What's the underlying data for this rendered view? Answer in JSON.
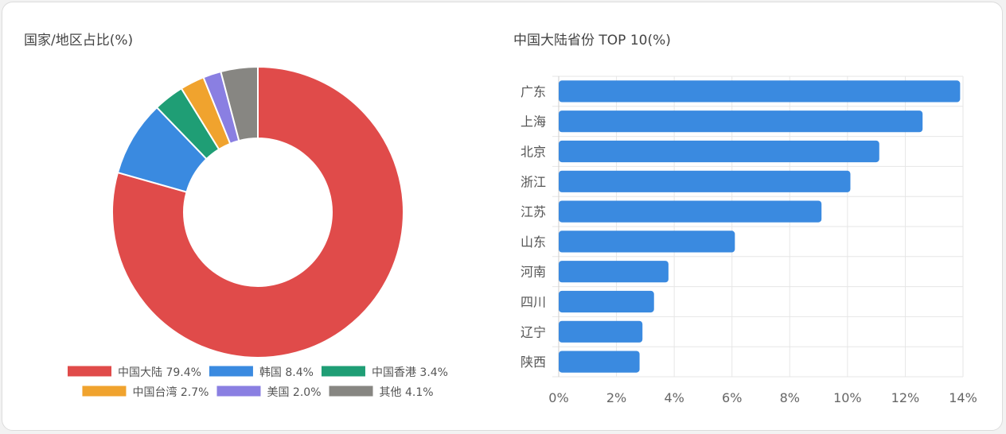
{
  "charts": {
    "left_title": "国家/地区占比(%)",
    "right_title": "中国大陆省份 TOP 10(%)"
  },
  "chart_data": [
    {
      "type": "pie",
      "variant": "donut",
      "title": "国家/地区占比(%)",
      "slices": [
        {
          "label": "中国大陆",
          "value": 79.4,
          "color": "#e04b4a",
          "legend": "中国大陆 79.4%"
        },
        {
          "label": "韩国",
          "value": 8.4,
          "color": "#3a8ae0",
          "legend": "韩国 8.4%"
        },
        {
          "label": "中国香港",
          "value": 3.4,
          "color": "#1f9e75",
          "legend": "中国香港 3.4%"
        },
        {
          "label": "中国台湾",
          "value": 2.7,
          "color": "#f0a32e",
          "legend": "中国台湾 2.7%"
        },
        {
          "label": "美国",
          "value": 2.0,
          "color": "#8a7fe2",
          "legend": "美国 2.0%"
        },
        {
          "label": "其他",
          "value": 4.1,
          "color": "#878682",
          "legend": "其他 4.1%"
        }
      ],
      "legend_position": "bottom"
    },
    {
      "type": "bar",
      "orientation": "horizontal",
      "title": "中国大陆省份 TOP 10(%)",
      "categories": [
        "广东",
        "上海",
        "北京",
        "浙江",
        "江苏",
        "山东",
        "河南",
        "四川",
        "辽宁",
        "陕西"
      ],
      "values": [
        13.9,
        12.6,
        11.1,
        10.1,
        9.1,
        6.1,
        3.8,
        3.3,
        2.9,
        2.8
      ],
      "color": "#3a8ae0",
      "xlim": [
        0,
        14
      ],
      "xticks": [
        "0%",
        "2%",
        "4%",
        "6%",
        "8%",
        "10%",
        "12%",
        "14%"
      ],
      "grid": true
    }
  ]
}
